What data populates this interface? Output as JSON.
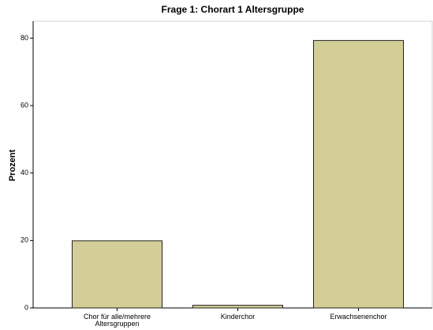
{
  "chart_data": {
    "type": "bar",
    "title": "Frage 1: Chorart 1 Altersgruppe",
    "y_label": "Prozent",
    "categories": [
      "Chor für alle/mehrere Altersgruppen",
      "Kinderchor",
      "Erwachsenenchor"
    ],
    "values": [
      19.9,
      0.8,
      79.3
    ],
    "color": "#d3ce97",
    "ylim": [
      0,
      85
    ],
    "yticks": [
      0,
      20,
      40,
      60,
      80
    ],
    "grid": false
  }
}
